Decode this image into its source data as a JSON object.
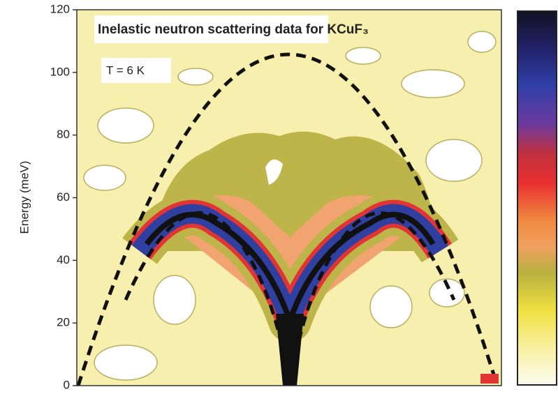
{
  "chart_data": {
    "type": "contour",
    "title": "Inelastic neutron scattering data for KCuF₃",
    "annotation": "T = 6 K",
    "y_label": "Energy (meV)",
    "ylim": [
      0,
      120
    ],
    "yticks": [
      0,
      20,
      40,
      60,
      80,
      100,
      120
    ]
  }
}
